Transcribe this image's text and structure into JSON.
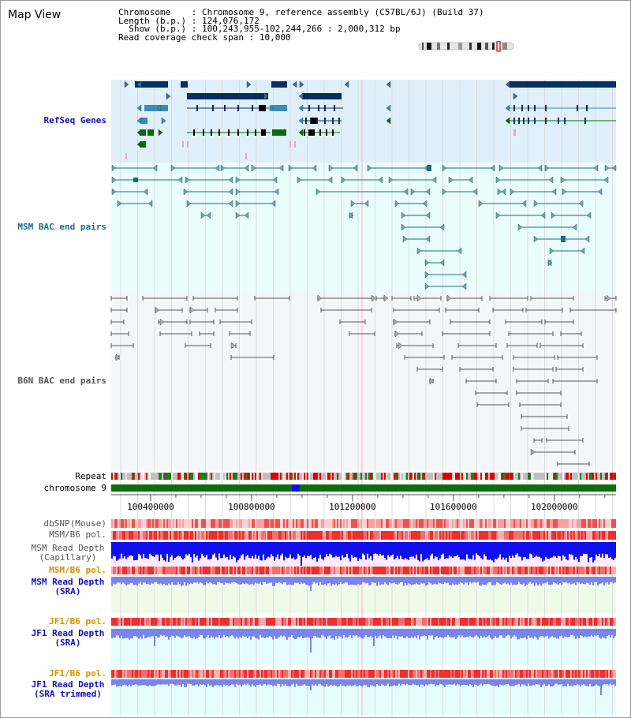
{
  "app_title": "Map View",
  "header": {
    "chromosome_key": "Chromosome",
    "chromosome_value": "Chromosome 9, reference assembly (C57BL/6J) (Build 37)",
    "length_key": "Length (b.p.)",
    "length_value": "124,076,172",
    "show_key": "Show (b.p.)",
    "show_value": "100,243,955-102,244,266 : 2,000,312 bp",
    "coverage_key": "Read coverage check span",
    "coverage_value": "10,000"
  },
  "tracks": {
    "refseq": "RefSeq Genes",
    "msm_bac": "MSM BAC end pairs",
    "b6n_bac": "B6N BAC end pairs",
    "repeat": "Repeat",
    "chromosome": "chromosome 9",
    "dbsnp": "dbSNP(Mouse)",
    "msm_b6_pol_1": "MSM/B6 pol.",
    "msm_read_depth_cap_1": "MSM Read Depth",
    "msm_read_depth_cap_2": "(Capillary)",
    "msm_b6_pol_2": "MSM/B6 pol.",
    "msm_read_depth_sra_1": "MSM Read Depth",
    "msm_read_depth_sra_2": "(SRA)",
    "jf1_b6_pol_1": "JF1/B6 pol.",
    "jf1_read_depth_sra_1": "JF1 Read Depth",
    "jf1_read_depth_sra_2": "(SRA)",
    "jf1_b6_pol_2": "JF1/B6 pol.",
    "jf1_read_depth_trim_1": "JF1 Read Depth",
    "jf1_read_depth_trim_2": "(SRA trimmed)"
  },
  "axis": {
    "start_bp": 100243955,
    "end_bp": 102244266,
    "ticks": [
      "100400000",
      "100800000",
      "101200000",
      "101600000",
      "102000000"
    ]
  },
  "colors": {
    "refseq_bg": "#dff0fa",
    "msm_bg": "#eafdfd",
    "b6n_bg": "#f4f6fa",
    "refseq_dark": "#0a2c5e",
    "refseq_teal": "#3c8cb4",
    "refseq_green": "#086a08",
    "msm_line": "#1a6a8a",
    "b6n_line": "#555555",
    "label_blue": "#1010b8",
    "label_teal": "#1a6a8a",
    "label_orange": "#d89000",
    "label_gray": "#555555",
    "chromosome_green": "#0a6e0a",
    "depth_blue": "#1010ee",
    "depth_light_blue": "#7a84f0"
  }
}
